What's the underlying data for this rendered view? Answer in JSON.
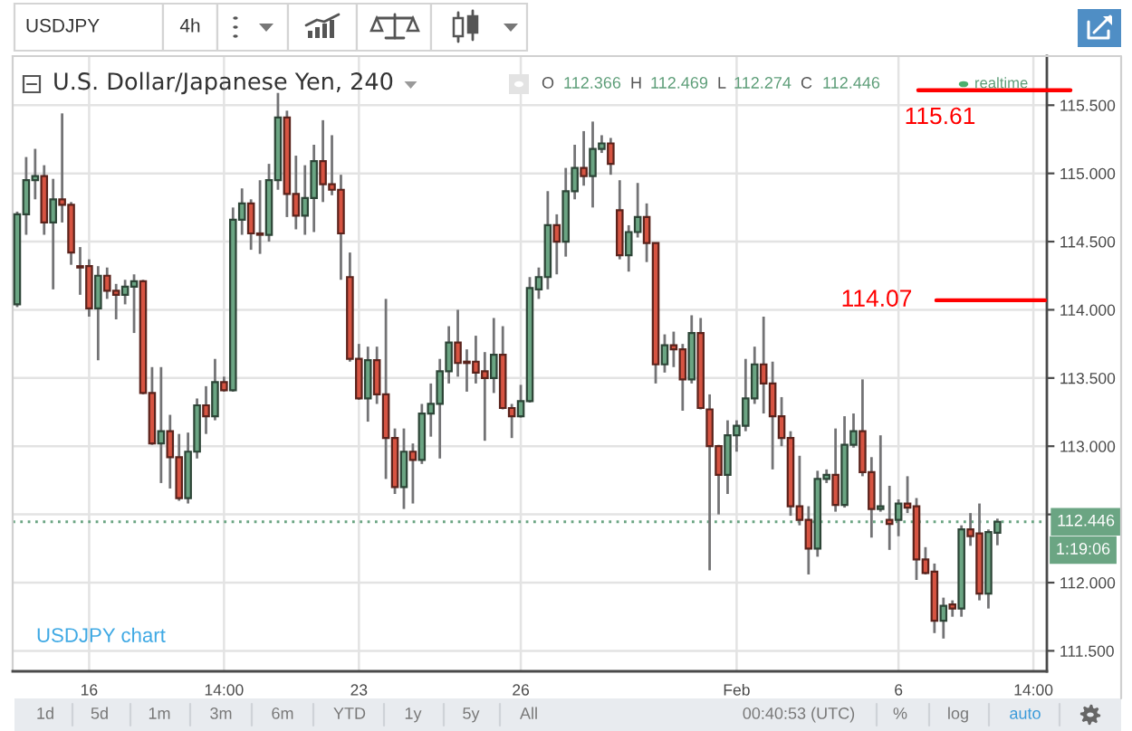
{
  "chart_data": {
    "type": "candlestick",
    "title": "U.S. Dollar/Japanese Yen, 240",
    "categories": [
      null,
      null,
      null,
      null,
      null,
      null,
      null,
      null,
      "16",
      null,
      null,
      null,
      null,
      null,
      null,
      null,
      null,
      null,
      null,
      null,
      null,
      null,
      null,
      "14:00",
      null,
      null,
      null,
      null,
      null,
      null,
      null,
      null,
      null,
      null,
      null,
      null,
      null,
      null,
      "23",
      null,
      null,
      null,
      null,
      null,
      null,
      null,
      null,
      null,
      null,
      null,
      null,
      null,
      null,
      null,
      null,
      null,
      "26",
      null,
      null,
      null,
      null,
      null,
      null,
      null,
      null,
      null,
      null,
      null,
      null,
      null,
      null,
      null,
      null,
      null,
      null,
      null,
      null,
      null,
      null,
      null,
      "Feb",
      null,
      null,
      null,
      null,
      null,
      null,
      null,
      null,
      null,
      null,
      null,
      null,
      null,
      null,
      null,
      null,
      null,
      "6",
      null,
      null,
      null,
      null,
      null,
      null,
      null,
      null,
      null,
      null,
      null,
      null,
      null,
      null,
      "14:00",
      null
    ],
    "ohlc": [
      [
        114.04,
        114.72,
        114.02,
        114.7
      ],
      [
        114.7,
        115.12,
        114.55,
        114.95
      ],
      [
        114.95,
        115.18,
        114.81,
        114.98
      ],
      [
        114.98,
        115.06,
        114.55,
        114.64
      ],
      [
        114.64,
        114.96,
        114.15,
        114.81
      ],
      [
        114.81,
        115.44,
        114.64,
        114.77
      ],
      [
        114.77,
        114.79,
        114.33,
        114.42
      ],
      [
        114.32,
        114.46,
        114.11,
        114.31
      ],
      [
        114.32,
        114.37,
        113.95,
        114.01
      ],
      [
        114.01,
        114.32,
        113.63,
        114.25
      ],
      [
        114.25,
        114.31,
        114.08,
        114.14
      ],
      [
        114.14,
        114.19,
        113.93,
        114.11
      ],
      [
        114.11,
        114.22,
        114.04,
        114.17
      ],
      [
        114.17,
        114.26,
        113.83,
        114.21
      ],
      [
        114.21,
        114.22,
        113.38,
        113.39
      ],
      [
        113.39,
        113.58,
        113.01,
        113.02
      ],
      [
        113.02,
        113.58,
        112.73,
        113.11
      ],
      [
        113.11,
        113.23,
        112.69,
        112.92
      ],
      [
        112.92,
        113.09,
        112.6,
        112.62
      ],
      [
        112.62,
        113.1,
        112.58,
        112.96
      ],
      [
        112.96,
        113.35,
        112.91,
        113.3
      ],
      [
        113.3,
        113.44,
        113.09,
        113.22
      ],
      [
        113.22,
        113.64,
        113.19,
        113.47
      ],
      [
        113.47,
        113.51,
        113.4,
        113.41
      ],
      [
        113.41,
        114.75,
        113.4,
        114.66
      ],
      [
        114.66,
        114.89,
        114.55,
        114.78
      ],
      [
        114.78,
        114.81,
        114.44,
        114.56
      ],
      [
        114.56,
        114.95,
        114.41,
        114.55
      ],
      [
        114.55,
        115.07,
        114.5,
        114.95
      ],
      [
        114.95,
        115.59,
        114.88,
        115.41
      ],
      [
        115.41,
        115.46,
        114.68,
        114.85
      ],
      [
        114.85,
        115.13,
        114.59,
        114.69
      ],
      [
        114.69,
        115.06,
        114.55,
        114.82
      ],
      [
        114.82,
        115.21,
        114.57,
        115.09
      ],
      [
        115.09,
        115.39,
        114.79,
        114.92
      ],
      [
        114.92,
        115.28,
        114.84,
        114.88
      ],
      [
        114.88,
        114.99,
        114.22,
        114.56
      ],
      [
        114.24,
        114.42,
        113.62,
        113.64
      ],
      [
        113.64,
        113.75,
        113.34,
        113.35
      ],
      [
        113.35,
        113.73,
        113.18,
        113.63
      ],
      [
        113.63,
        113.73,
        113.31,
        113.38
      ],
      [
        113.38,
        114.08,
        112.76,
        113.06
      ],
      [
        113.06,
        113.13,
        112.65,
        112.7
      ],
      [
        112.7,
        113.13,
        112.54,
        112.96
      ],
      [
        112.96,
        113.02,
        112.58,
        112.9
      ],
      [
        112.9,
        113.31,
        112.87,
        113.24
      ],
      [
        113.24,
        113.46,
        113.07,
        113.31
      ],
      [
        113.31,
        113.64,
        112.91,
        113.55
      ],
      [
        113.55,
        113.88,
        113.46,
        113.76
      ],
      [
        113.76,
        114.0,
        113.51,
        113.61
      ],
      [
        113.62,
        113.71,
        113.4,
        113.61
      ],
      [
        113.62,
        113.81,
        113.46,
        113.54
      ],
      [
        113.55,
        113.69,
        113.04,
        113.5
      ],
      [
        113.5,
        113.94,
        113.39,
        113.67
      ],
      [
        113.67,
        113.88,
        113.27,
        113.28
      ],
      [
        113.28,
        113.31,
        113.06,
        113.22
      ],
      [
        113.22,
        113.45,
        113.21,
        113.33
      ],
      [
        113.33,
        114.24,
        113.32,
        114.16
      ],
      [
        114.15,
        114.31,
        114.08,
        114.24
      ],
      [
        114.24,
        114.87,
        114.15,
        114.62
      ],
      [
        114.62,
        114.7,
        114.26,
        114.5
      ],
      [
        114.5,
        115.04,
        114.39,
        114.87
      ],
      [
        114.87,
        115.21,
        114.81,
        115.04
      ],
      [
        115.04,
        115.31,
        114.91,
        114.98
      ],
      [
        114.98,
        115.38,
        114.75,
        115.18
      ],
      [
        115.18,
        115.28,
        115.15,
        115.22
      ],
      [
        115.22,
        115.26,
        114.99,
        115.07
      ],
      [
        114.73,
        114.95,
        114.37,
        114.4
      ],
      [
        114.4,
        114.62,
        114.28,
        114.57
      ],
      [
        114.57,
        114.93,
        114.53,
        114.68
      ],
      [
        114.68,
        114.78,
        114.35,
        114.49
      ],
      [
        114.49,
        114.49,
        113.46,
        113.6
      ],
      [
        113.6,
        113.82,
        113.54,
        113.74
      ],
      [
        113.74,
        113.84,
        113.58,
        113.71
      ],
      [
        113.71,
        113.75,
        113.26,
        113.49
      ],
      [
        113.49,
        113.96,
        113.46,
        113.83
      ],
      [
        113.83,
        113.94,
        113.27,
        113.28
      ],
      [
        113.27,
        113.38,
        112.09,
        113.0
      ],
      [
        113.0,
        113.01,
        112.5,
        112.79
      ],
      [
        112.79,
        113.19,
        112.65,
        113.08
      ],
      [
        113.08,
        113.19,
        112.96,
        113.15
      ],
      [
        113.15,
        113.64,
        113.11,
        113.35
      ],
      [
        113.35,
        113.73,
        113.31,
        113.6
      ],
      [
        113.6,
        113.95,
        113.24,
        113.46
      ],
      [
        113.46,
        113.62,
        112.83,
        113.22
      ],
      [
        113.22,
        113.36,
        113.0,
        113.06
      ],
      [
        113.06,
        113.11,
        112.49,
        112.56
      ],
      [
        112.56,
        112.93,
        112.42,
        112.46
      ],
      [
        112.46,
        112.56,
        112.06,
        112.25
      ],
      [
        112.25,
        112.82,
        112.19,
        112.76
      ],
      [
        112.76,
        112.83,
        112.73,
        112.79
      ],
      [
        112.79,
        113.13,
        112.52,
        112.57
      ],
      [
        112.57,
        113.22,
        112.55,
        113.01
      ],
      [
        113.01,
        113.24,
        112.99,
        113.11
      ],
      [
        113.11,
        113.49,
        112.78,
        112.81
      ],
      [
        112.81,
        112.92,
        112.33,
        112.54
      ],
      [
        112.54,
        113.08,
        112.52,
        112.56
      ],
      [
        112.46,
        112.71,
        112.24,
        112.43
      ],
      [
        112.46,
        112.61,
        112.34,
        112.58
      ],
      [
        112.58,
        112.78,
        112.51,
        112.55
      ],
      [
        112.56,
        112.62,
        112.02,
        112.17
      ],
      [
        112.17,
        112.26,
        112.06,
        112.07
      ],
      [
        112.08,
        112.14,
        111.63,
        111.72
      ],
      [
        111.72,
        111.89,
        111.59,
        111.83
      ],
      [
        111.84,
        111.87,
        111.75,
        111.81
      ],
      [
        111.81,
        112.42,
        111.75,
        112.39
      ],
      [
        112.39,
        112.51,
        112.27,
        112.34
      ],
      [
        112.36,
        112.58,
        111.87,
        111.92
      ],
      [
        111.92,
        112.39,
        111.81,
        112.37
      ],
      [
        112.366,
        112.469,
        112.274,
        112.446
      ],
      null,
      null,
      null,
      null,
      null
    ],
    "colors": [
      "#6ba583",
      "#6ba583",
      "#6ba583",
      "#d75442",
      "#6ba583",
      "#d75442",
      "#d75442",
      "#d75442",
      "#d75442",
      "#6ba583",
      "#d75442",
      "#d75442",
      "#6ba583",
      "#6ba583",
      "#d75442",
      "#d75442",
      "#6ba583",
      "#d75442",
      "#d75442",
      "#6ba583",
      "#6ba583",
      "#d75442",
      "#6ba583",
      "#d75442",
      "#6ba583",
      "#6ba583",
      "#d75442",
      "#d75442",
      "#6ba583",
      "#6ba583",
      "#d75442",
      "#d75442",
      "#6ba583",
      "#6ba583",
      "#d75442",
      "#d75442",
      "#d75442",
      "#d75442",
      "#d75442",
      "#6ba583",
      "#d75442",
      "#d75442",
      "#d75442",
      "#6ba583",
      "#d75442",
      "#6ba583",
      "#6ba583",
      "#6ba583",
      "#6ba583",
      "#d75442",
      "#d75442",
      "#d75442",
      "#d75442",
      "#6ba583",
      "#d75442",
      "#d75442",
      "#6ba583",
      "#6ba583",
      "#6ba583",
      "#6ba583",
      "#d75442",
      "#6ba583",
      "#6ba583",
      "#d75442",
      "#6ba583",
      "#6ba583",
      "#d75442",
      "#d75442",
      "#6ba583",
      "#6ba583",
      "#d75442",
      "#d75442",
      "#6ba583",
      "#d75442",
      "#d75442",
      "#6ba583",
      "#d75442",
      "#d75442",
      "#d75442",
      "#6ba583",
      "#6ba583",
      "#6ba583",
      "#6ba583",
      "#d75442",
      "#d75442",
      "#d75442",
      "#d75442",
      "#d75442",
      "#d75442",
      "#6ba583",
      "#6ba583",
      "#d75442",
      "#6ba583",
      "#6ba583",
      "#d75442",
      "#d75442",
      "#6ba583",
      "#d75442",
      "#6ba583",
      "#d75442",
      "#d75442",
      "#d75442",
      "#d75442",
      "#6ba583",
      "#d75442",
      "#6ba583",
      "#d75442",
      "#d75442",
      "#6ba583",
      "#6ba583",
      null,
      null,
      null,
      null,
      null
    ],
    "ylim": [
      111.35,
      115.86
    ],
    "yticks": [
      {
        "value": 111.5,
        "label": "111.500"
      },
      {
        "value": 112.0,
        "label": "112.000"
      },
      {
        "value": 112.5,
        "label": null
      },
      {
        "value": 113.0,
        "label": "113.000"
      },
      {
        "value": 113.5,
        "label": "113.500"
      },
      {
        "value": 114.0,
        "label": "114.000"
      },
      {
        "value": 114.5,
        "label": "114.500"
      },
      {
        "value": 115.0,
        "label": "115.000"
      },
      {
        "value": 115.5,
        "label": "115.500"
      }
    ],
    "grid": true,
    "ref_lines": [
      {
        "axis": "y",
        "value": 112.446,
        "label": "112.446",
        "color": "#6ba583",
        "line_style": "dotted"
      },
      {
        "axis": "y",
        "value": 115.61,
        "label": "115.61",
        "color": "#ff0000",
        "line_style": "solid"
      },
      {
        "axis": "y",
        "value": 114.07,
        "label": "114.07",
        "color": "#ff0000",
        "line_style": "solid"
      }
    ],
    "annotations": [
      "USDJPY",
      "4h",
      "O",
      "112.366",
      "H",
      "112.469",
      "L",
      "112.274",
      "C",
      "112.446",
      "realtime",
      "USDJPY chart",
      "1:19:06",
      "1d",
      "5d",
      "1m",
      "3m",
      "6m",
      "YTD",
      "1y",
      "5y",
      "All",
      "00:40:53 (UTC)",
      "%",
      "log",
      "auto"
    ]
  }
}
